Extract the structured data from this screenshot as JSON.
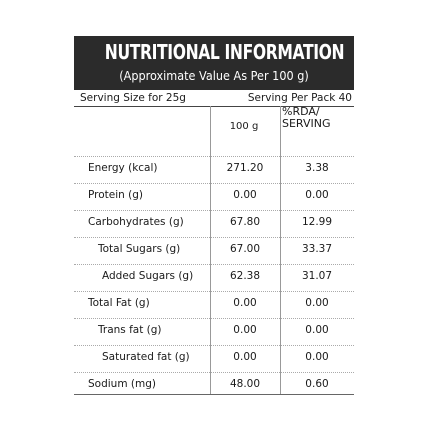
{
  "header": {
    "title": "NUTRITIONAL INFORMATION",
    "subtitle": "(Approximate Value As Per 100 g)"
  },
  "serving": {
    "size": "Serving Size for 25g",
    "per_pack": "Serving Per Pack 40"
  },
  "columns": {
    "per_100g": "100 g",
    "rda_line1": "%RDA/",
    "rda_line2": "SERVING"
  },
  "rows": [
    {
      "label": "Energy (kcal)",
      "per_100g": "271.20",
      "rda": "3.38",
      "indent": 0
    },
    {
      "label": "Protein (g)",
      "per_100g": "0.00",
      "rda": "0.00",
      "indent": 0
    },
    {
      "label": "Carbohydrates (g)",
      "per_100g": "67.80",
      "rda": "12.99",
      "indent": 0
    },
    {
      "label": "Total Sugars (g)",
      "per_100g": "67.00",
      "rda": "33.37",
      "indent": 1
    },
    {
      "label": "Added Sugars (g)",
      "per_100g": "62.38",
      "rda": "31.07",
      "indent": 2
    },
    {
      "label": "Total Fat (g)",
      "per_100g": "0.00",
      "rda": "0.00",
      "indent": 0
    },
    {
      "label": "Trans fat (g)",
      "per_100g": "0.00",
      "rda": "0.00",
      "indent": 1
    },
    {
      "label": "Saturated fat (g)",
      "per_100g": "0.00",
      "rda": "0.00",
      "indent": 2
    },
    {
      "label": "Sodium (mg)",
      "per_100g": "48.00",
      "rda": "0.60",
      "indent": 0
    }
  ]
}
